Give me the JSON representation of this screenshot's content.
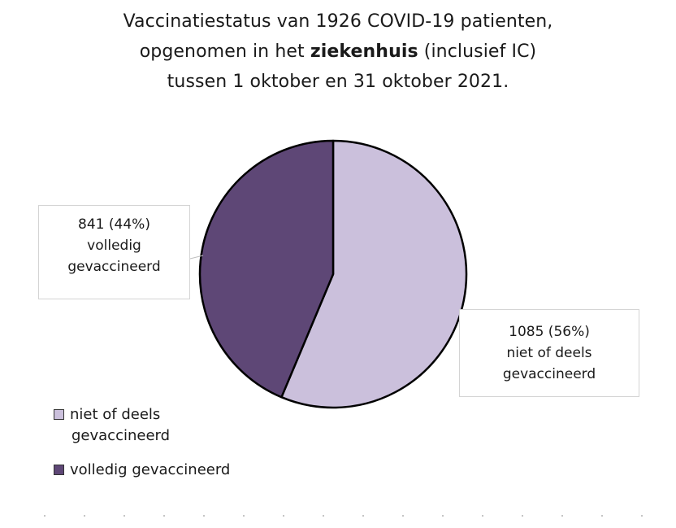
{
  "chart_data": {
    "type": "pie",
    "title": {
      "line1": "Vaccinatiestatus van 1926 COVID-19 patienten,",
      "line2_pre": "opgenomen in het ",
      "line2_bold": "ziekenhuis",
      "line2_post": " (inclusief IC)",
      "line3": "tussen 1 oktober en 31 oktober 2021."
    },
    "slices": [
      {
        "label_line1": "niet of deels",
        "label_line2": "gevaccineerd",
        "value": 1085,
        "value_text": "1085 (56%)",
        "color": "#cbc0dc"
      },
      {
        "label": "volledig gevaccineerd",
        "label_line1": "volledig",
        "label_line2": "gevaccineerd",
        "value": 841,
        "value_text": "841 (44%)",
        "color": "#5e4776"
      }
    ],
    "legend_position": "bottom-left"
  }
}
